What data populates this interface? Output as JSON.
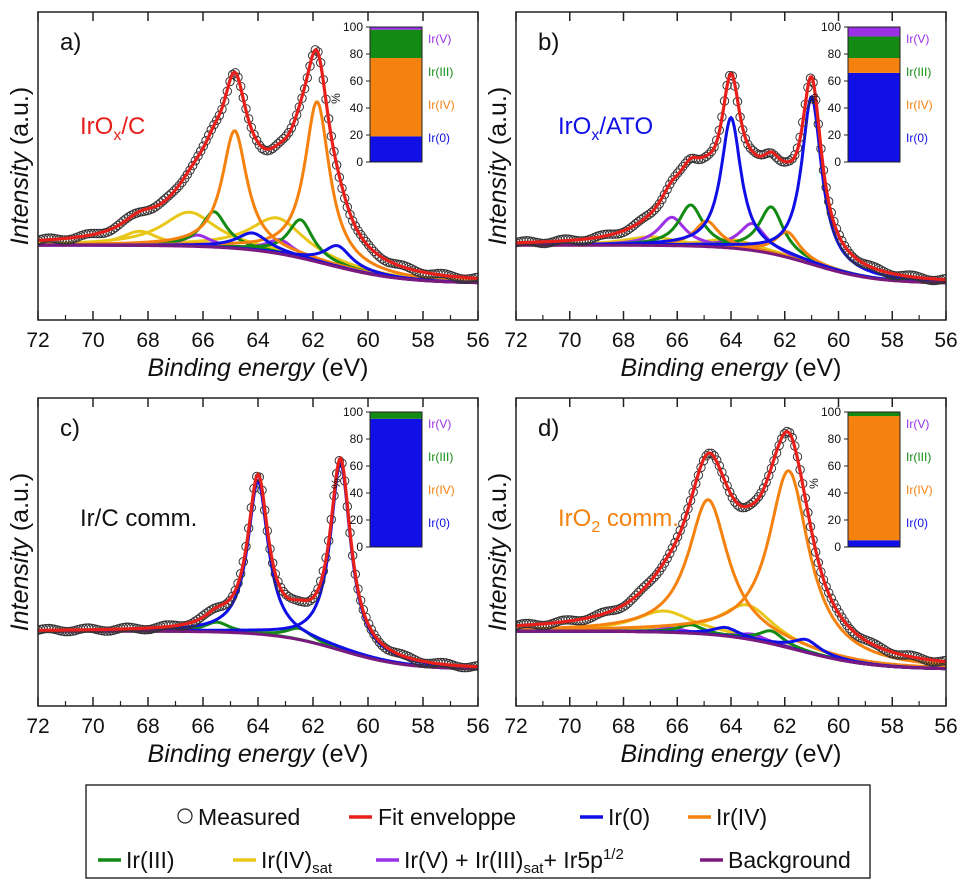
{
  "colors": {
    "measured": "#333333",
    "fit": "#e8201c",
    "ir0": "#1010e6",
    "ir4": "#f5820f",
    "ir3": "#138a13",
    "ir4sat": "#e8c71a",
    "ir5": "#9b30e6",
    "background": "#7a1a7f"
  },
  "legend": {
    "measured": "Measured",
    "fit": "Fit enveloppe",
    "ir0": "Ir(0)",
    "ir4": "Ir(IV)",
    "ir3": "Ir(III)",
    "ir4sat_main": "Ir(IV)",
    "ir4sat_sub": "sat",
    "ir5_a": "Ir(V) + Ir(III)",
    "ir5_b": "sat",
    "ir5_c": "+ Ir5p",
    "ir5_d": "1/2",
    "background": "Background"
  },
  "chart_data": [
    {
      "type": "line",
      "panel_label": "a)",
      "sample": {
        "main": "IrO",
        "sub": "x",
        "rest": "/C"
      },
      "sample_color": "#e8201c",
      "xlabel": {
        "italic": "Binding energy",
        "unit": "(eV)"
      },
      "ylabel": {
        "italic": "Intensity",
        "unit": "(a.u.)"
      },
      "xlim": [
        72,
        56
      ],
      "x_ticks": [
        72,
        70,
        68,
        66,
        64,
        62,
        60,
        58,
        56
      ],
      "peaks": {
        "ir0": [
          {
            "center": 64.2,
            "height": 0.12,
            "width": 0.7
          },
          {
            "center": 61.1,
            "height": 0.15,
            "width": 0.6
          }
        ],
        "ir4": [
          {
            "center": 64.85,
            "height": 0.83,
            "width": 0.55
          },
          {
            "center": 61.85,
            "height": 1.13,
            "width": 0.55
          }
        ],
        "ir3": [
          {
            "center": 65.6,
            "height": 0.25,
            "width": 0.55
          },
          {
            "center": 62.45,
            "height": 0.27,
            "width": 0.55
          }
        ],
        "ir4sat": [
          {
            "center": 68.3,
            "height": 0.1,
            "width": 0.8
          },
          {
            "center": 66.5,
            "height": 0.24,
            "width": 1.2
          },
          {
            "center": 63.3,
            "height": 0.25,
            "width": 1.2
          }
        ],
        "ir5": [
          {
            "center": 66.2,
            "height": 0.08,
            "width": 0.6
          },
          {
            "center": 63.2,
            "height": 0.1,
            "width": 0.6
          }
        ]
      },
      "background": {
        "high": 0.05,
        "low": -0.22,
        "center": 61.5,
        "width": 1.4
      },
      "inset": {
        "ylim": [
          0,
          100
        ],
        "y_ticks": [
          0,
          20,
          40,
          60,
          80,
          100
        ],
        "ylabel": "%",
        "labels": [
          "Ir(V)",
          "Ir(III)",
          "Ir(IV)",
          "Ir(0)"
        ],
        "composition": [
          {
            "state": "Ir(0)",
            "percent": 19
          },
          {
            "state": "Ir(IV)",
            "percent": 58
          },
          {
            "state": "Ir(III)",
            "percent": 21
          },
          {
            "state": "Ir(V)",
            "percent": 2
          }
        ]
      }
    },
    {
      "type": "line",
      "panel_label": "b)",
      "sample": {
        "main": "IrO",
        "sub": "x",
        "rest": "/ATO"
      },
      "sample_color": "#1010e6",
      "xlabel": {
        "italic": "Binding energy",
        "unit": "(eV)"
      },
      "ylabel": {
        "italic": "Intensity",
        "unit": "(a.u.)"
      },
      "xlim": [
        72,
        56
      ],
      "x_ticks": [
        72,
        70,
        68,
        66,
        64,
        62,
        60,
        58,
        56
      ],
      "peaks": {
        "ir0": [
          {
            "center": 64.0,
            "height": 0.92,
            "width": 0.45
          },
          {
            "center": 61.0,
            "height": 1.18,
            "width": 0.45
          }
        ],
        "ir4": [
          {
            "center": 64.9,
            "height": 0.18,
            "width": 0.55
          },
          {
            "center": 61.9,
            "height": 0.18,
            "width": 0.55
          }
        ],
        "ir3": [
          {
            "center": 65.5,
            "height": 0.29,
            "width": 0.55
          },
          {
            "center": 62.5,
            "height": 0.33,
            "width": 0.55
          }
        ],
        "ir4sat": [
          {
            "center": 67.0,
            "height": 0.06,
            "width": 1.2
          },
          {
            "center": 64.0,
            "height": 0.06,
            "width": 1.2
          }
        ],
        "ir5": [
          {
            "center": 66.2,
            "height": 0.2,
            "width": 0.6
          },
          {
            "center": 63.2,
            "height": 0.19,
            "width": 0.6
          }
        ]
      },
      "background": {
        "high": 0.05,
        "low": -0.22,
        "center": 61.0,
        "width": 1.2
      },
      "inset": {
        "ylim": [
          0,
          100
        ],
        "y_ticks": [
          0,
          20,
          40,
          60,
          80,
          100
        ],
        "ylabel": "%",
        "labels": [
          "Ir(V)",
          "Ir(III)",
          "Ir(IV)",
          "Ir(0)"
        ],
        "composition": [
          {
            "state": "Ir(0)",
            "percent": 66
          },
          {
            "state": "Ir(IV)",
            "percent": 11
          },
          {
            "state": "Ir(III)",
            "percent": 16
          },
          {
            "state": "Ir(V)",
            "percent": 7
          }
        ]
      }
    },
    {
      "type": "line",
      "panel_label": "c)",
      "sample": {
        "main": "Ir/C comm.",
        "sub": "",
        "rest": ""
      },
      "sample_color": "#111111",
      "xlabel": {
        "italic": "Binding energy",
        "unit": "(eV)"
      },
      "ylabel": {
        "italic": "Intensity",
        "unit": "(a.u.)"
      },
      "xlim": [
        72,
        56
      ],
      "x_ticks": [
        72,
        70,
        68,
        66,
        64,
        62,
        60,
        58,
        56
      ],
      "peaks": {
        "ir0": [
          {
            "center": 64.0,
            "height": 1.08,
            "width": 0.45
          },
          {
            "center": 61.0,
            "height": 1.32,
            "width": 0.45
          }
        ],
        "ir4": [],
        "ir3": [
          {
            "center": 65.5,
            "height": 0.07,
            "width": 0.55
          },
          {
            "center": 62.5,
            "height": 0.08,
            "width": 0.55
          }
        ],
        "ir4sat": [],
        "ir5": []
      },
      "background": {
        "high": 0.05,
        "low": -0.22,
        "center": 61.0,
        "width": 1.2
      },
      "inset": {
        "ylim": [
          0,
          100
        ],
        "y_ticks": [
          0,
          20,
          40,
          60,
          80,
          100
        ],
        "ylabel": "%",
        "labels": [
          "Ir(V)",
          "Ir(III)",
          "Ir(IV)",
          "Ir(0)"
        ],
        "composition": [
          {
            "state": "Ir(0)",
            "percent": 95
          },
          {
            "state": "Ir(IV)",
            "percent": 0
          },
          {
            "state": "Ir(III)",
            "percent": 5
          },
          {
            "state": "Ir(V)",
            "percent": 0
          }
        ]
      }
    },
    {
      "type": "line",
      "panel_label": "d)",
      "sample": {
        "main": "IrO",
        "sub": "2",
        "rest": " comm."
      },
      "sample_color": "#f5820f",
      "xlabel": {
        "italic": "Binding energy",
        "unit": "(eV)"
      },
      "ylabel": {
        "italic": "Intensity",
        "unit": "(a.u.)"
      },
      "xlim": [
        72,
        56
      ],
      "x_ticks": [
        72,
        70,
        68,
        66,
        64,
        62,
        60,
        58,
        56
      ],
      "peaks": {
        "ir0": [
          {
            "center": 64.2,
            "height": 0.06,
            "width": 0.6
          },
          {
            "center": 61.2,
            "height": 0.09,
            "width": 0.6
          }
        ],
        "ir4": [
          {
            "center": 64.85,
            "height": 0.95,
            "width": 0.9
          },
          {
            "center": 61.85,
            "height": 1.25,
            "width": 0.9
          }
        ],
        "ir3": [
          {
            "center": 65.5,
            "height": 0.06,
            "width": 0.55
          },
          {
            "center": 62.5,
            "height": 0.09,
            "width": 0.55
          }
        ],
        "ir4sat": [
          {
            "center": 66.5,
            "height": 0.15,
            "width": 1.3
          },
          {
            "center": 63.4,
            "height": 0.24,
            "width": 1.2
          }
        ],
        "ir5": [
          {
            "center": 66.2,
            "height": 0.03,
            "width": 0.6
          },
          {
            "center": 63.2,
            "height": 0.04,
            "width": 0.6
          }
        ]
      },
      "background": {
        "high": 0.05,
        "low": -0.22,
        "center": 61.5,
        "width": 1.4
      },
      "inset": {
        "ylim": [
          0,
          100
        ],
        "y_ticks": [
          0,
          20,
          40,
          60,
          80,
          100
        ],
        "ylabel": "%",
        "labels": [
          "Ir(V)",
          "Ir(III)",
          "Ir(IV)",
          "Ir(0)"
        ],
        "composition": [
          {
            "state": "Ir(0)",
            "percent": 5
          },
          {
            "state": "Ir(IV)",
            "percent": 92
          },
          {
            "state": "Ir(III)",
            "percent": 3
          },
          {
            "state": "Ir(V)",
            "percent": 0
          }
        ]
      }
    }
  ]
}
